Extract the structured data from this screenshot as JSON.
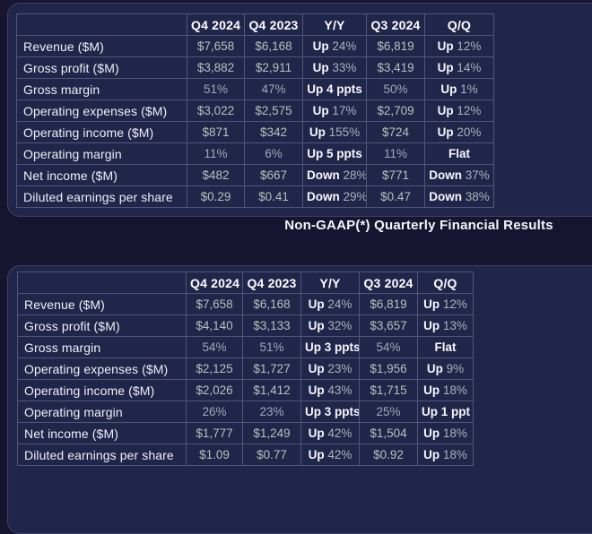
{
  "title": {
    "text": "Non-GAAP(*) Quarterly Financial Results"
  },
  "colors": {
    "bg": "#16142f",
    "panel": "#20254a",
    "panel-border": "#3a4068",
    "grid": "#51577a",
    "label": "#eef0f5",
    "header": "#ffffff",
    "money": "#b5c4ba",
    "pct": "#9fa9bb",
    "chg-word": "#f8f9fc",
    "chg-num": "#a9b3bd",
    "title": "#f5f6fa"
  },
  "tables": [
    {
      "columns": [
        "",
        "Q4 2024",
        "Q4 2023",
        "Y/Y",
        "Q3 2024",
        "Q/Q"
      ],
      "rows": [
        {
          "label": "Revenue ($M)",
          "cells": [
            {
              "style": "money",
              "value": "$7,658"
            },
            {
              "style": "money",
              "value": "$6,168"
            },
            {
              "prefix": "Up",
              "value": "24%"
            },
            {
              "style": "money",
              "value": "$6,819"
            },
            {
              "prefix": "Up",
              "value": "12%"
            }
          ]
        },
        {
          "label": "Gross profit ($M)",
          "cells": [
            {
              "style": "money",
              "value": "$3,882"
            },
            {
              "style": "money",
              "value": "$2,911"
            },
            {
              "prefix": "Up",
              "value": "33%"
            },
            {
              "style": "money",
              "value": "$3,419"
            },
            {
              "prefix": "Up",
              "value": "14%"
            }
          ]
        },
        {
          "label": "Gross margin",
          "cells": [
            {
              "style": "pct",
              "value": "51%"
            },
            {
              "style": "pct",
              "value": "47%"
            },
            {
              "style": "strong",
              "value": "Up 4 ppts"
            },
            {
              "style": "pct",
              "value": "50%"
            },
            {
              "prefix": "Up",
              "value": "1%"
            }
          ]
        },
        {
          "label": "Operating expenses ($M)",
          "cells": [
            {
              "style": "money",
              "value": "$3,022"
            },
            {
              "style": "money",
              "value": "$2,575"
            },
            {
              "prefix": "Up",
              "value": "17%"
            },
            {
              "style": "money",
              "value": "$2,709"
            },
            {
              "prefix": "Up",
              "value": "12%"
            }
          ]
        },
        {
          "label": "Operating income ($M)",
          "cells": [
            {
              "style": "money",
              "value": "$871"
            },
            {
              "style": "money",
              "value": "$342"
            },
            {
              "prefix": "Up",
              "value": "155%"
            },
            {
              "style": "money",
              "value": "$724"
            },
            {
              "prefix": "Up",
              "value": "20%"
            }
          ]
        },
        {
          "label": "Operating margin",
          "cells": [
            {
              "style": "pct",
              "value": "11%"
            },
            {
              "style": "pct",
              "value": "6%"
            },
            {
              "style": "strong",
              "value": "Up 5 ppts"
            },
            {
              "style": "pct",
              "value": "11%"
            },
            {
              "style": "strong",
              "value": "Flat"
            }
          ]
        },
        {
          "label": "Net income ($M)",
          "cells": [
            {
              "style": "money",
              "value": "$482"
            },
            {
              "style": "money",
              "value": "$667"
            },
            {
              "prefix": "Down",
              "value": "28%"
            },
            {
              "style": "money",
              "value": "$771"
            },
            {
              "prefix": "Down",
              "value": "37%"
            }
          ]
        },
        {
          "label": "Diluted earnings per share",
          "cells": [
            {
              "style": "money",
              "value": "$0.29"
            },
            {
              "style": "money",
              "value": "$0.41"
            },
            {
              "prefix": "Down",
              "value": "29%"
            },
            {
              "style": "money",
              "value": "$0.47"
            },
            {
              "prefix": "Down",
              "value": "38%"
            }
          ]
        }
      ]
    },
    {
      "columns": [
        "",
        "Q4 2024",
        "Q4 2023",
        "Y/Y",
        "Q3 2024",
        "Q/Q"
      ],
      "rows": [
        {
          "label": "Revenue ($M)",
          "cells": [
            {
              "style": "money",
              "value": "$7,658"
            },
            {
              "style": "money",
              "value": "$6,168"
            },
            {
              "prefix": "Up",
              "value": "24%"
            },
            {
              "style": "money",
              "value": "$6,819"
            },
            {
              "prefix": "Up",
              "value": "12%"
            }
          ]
        },
        {
          "label": "Gross profit ($M)",
          "cells": [
            {
              "style": "money",
              "value": "$4,140"
            },
            {
              "style": "money",
              "value": "$3,133"
            },
            {
              "prefix": "Up",
              "value": "32%"
            },
            {
              "style": "money",
              "value": "$3,657"
            },
            {
              "prefix": "Up",
              "value": "13%"
            }
          ]
        },
        {
          "label": "Gross margin",
          "cells": [
            {
              "style": "pct",
              "value": "54%"
            },
            {
              "style": "pct",
              "value": "51%"
            },
            {
              "style": "strong",
              "value": "Up 3 ppts"
            },
            {
              "style": "pct",
              "value": "54%"
            },
            {
              "style": "strong",
              "value": "Flat"
            }
          ]
        },
        {
          "label": "Operating expenses ($M)",
          "cells": [
            {
              "style": "money",
              "value": "$2,125"
            },
            {
              "style": "money",
              "value": "$1,727"
            },
            {
              "prefix": "Up",
              "value": "23%"
            },
            {
              "style": "money",
              "value": "$1,956"
            },
            {
              "prefix": "Up",
              "value": "9%"
            }
          ]
        },
        {
          "label": "Operating income ($M)",
          "cells": [
            {
              "style": "money",
              "value": "$2,026"
            },
            {
              "style": "money",
              "value": "$1,412"
            },
            {
              "prefix": "Up",
              "value": "43%"
            },
            {
              "style": "money",
              "value": "$1,715"
            },
            {
              "prefix": "Up",
              "value": "18%"
            }
          ]
        },
        {
          "label": "Operating margin",
          "cells": [
            {
              "style": "pct",
              "value": "26%"
            },
            {
              "style": "pct",
              "value": "23%"
            },
            {
              "style": "strong",
              "value": "Up 3 ppts"
            },
            {
              "style": "pct",
              "value": "25%"
            },
            {
              "style": "strong",
              "value": "Up 1 ppt"
            }
          ]
        },
        {
          "label": "Net income ($M)",
          "cells": [
            {
              "style": "money",
              "value": "$1,777"
            },
            {
              "style": "money",
              "value": "$1,249"
            },
            {
              "prefix": "Up",
              "value": "42%"
            },
            {
              "style": "money",
              "value": "$1,504"
            },
            {
              "prefix": "Up",
              "value": "18%"
            }
          ]
        },
        {
          "label": "Diluted earnings per share",
          "cells": [
            {
              "style": "money",
              "value": "$1.09"
            },
            {
              "style": "money",
              "value": "$0.77"
            },
            {
              "prefix": "Up",
              "value": "42%"
            },
            {
              "style": "money",
              "value": "$0.92"
            },
            {
              "prefix": "Up",
              "value": "18%"
            }
          ]
        }
      ]
    }
  ]
}
